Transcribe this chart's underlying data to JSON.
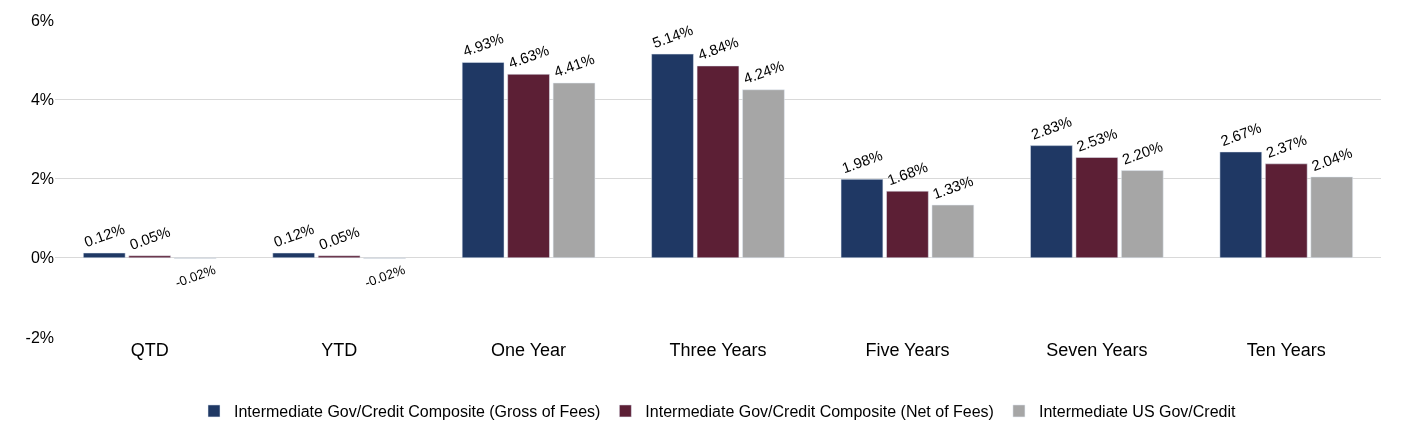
{
  "chart_data": {
    "type": "bar",
    "categories": [
      "QTD",
      "YTD",
      "One Year",
      "Three Years",
      "Five Years",
      "Seven Years",
      "Ten Years"
    ],
    "series": [
      {
        "name": "Intermediate Gov/Credit Composite (Gross of Fees)",
        "color": "#1f3864",
        "values": [
          0.12,
          0.12,
          4.93,
          5.14,
          1.98,
          2.83,
          2.67
        ],
        "value_labels": [
          "0.12%",
          "0.12%",
          "4.93%",
          "5.14%",
          "1.98%",
          "2.83%",
          "2.67%"
        ]
      },
      {
        "name": "Intermediate Gov/Credit Composite (Net of Fees)",
        "color": "#5c1f35",
        "values": [
          0.05,
          0.05,
          4.63,
          4.84,
          1.68,
          2.53,
          2.37
        ],
        "value_labels": [
          "0.05%",
          "0.05%",
          "4.63%",
          "4.84%",
          "1.68%",
          "2.53%",
          "2.37%"
        ]
      },
      {
        "name": "Intermediate US Gov/Credit",
        "color": "#a6a6a6",
        "values": [
          -0.02,
          -0.02,
          4.41,
          4.24,
          1.33,
          2.2,
          2.04
        ],
        "value_labels": [
          "-0.02%",
          "-0.02%",
          "4.41%",
          "4.24%",
          "1.33%",
          "2.20%",
          "2.04%"
        ]
      }
    ],
    "ylim": [
      -2,
      6
    ],
    "yticks": [
      {
        "value": -2,
        "label": "-2%"
      },
      {
        "value": 0,
        "label": "0%"
      },
      {
        "value": 2,
        "label": "2%"
      },
      {
        "value": 4,
        "label": "4%"
      },
      {
        "value": 6,
        "label": "6%"
      }
    ],
    "grid": "y",
    "legend": "bottom"
  }
}
